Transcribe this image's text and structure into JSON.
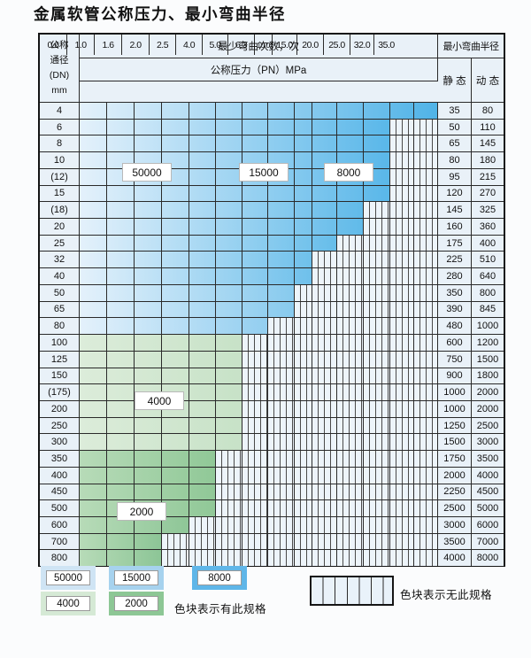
{
  "page": {
    "title": "金属软管公称压力、最小弯曲半径"
  },
  "table": {
    "header": {
      "dn_lines": [
        "公称",
        "通径",
        "(DN)",
        "mm"
      ],
      "cycles_label": "最少弯曲次数，次",
      "radius_label": "最小弯曲半径",
      "pressure_label": "公称压力（PN）MPa",
      "pressure_cols": [
        "0.6",
        "1.0",
        "1.6",
        "2.0",
        "2.5",
        "4.0",
        "5.0",
        "6.3",
        "10.0",
        "15.0",
        "20.0",
        "25.0",
        "32.0",
        "35.0"
      ],
      "static_label": "静 态",
      "dynamic_label": "动 态"
    },
    "rows": [
      {
        "dn": "4",
        "max_pn": "35.0",
        "palette": "b",
        "static": "35",
        "dynamic": "80"
      },
      {
        "dn": "6",
        "max_pn": "25.0",
        "palette": "b",
        "static": "50",
        "dynamic": "110"
      },
      {
        "dn": "8",
        "max_pn": "25.0",
        "palette": "b",
        "static": "65",
        "dynamic": "145"
      },
      {
        "dn": "10",
        "max_pn": "25.0",
        "palette": "b",
        "static": "80",
        "dynamic": "180"
      },
      {
        "dn": "(12)",
        "max_pn": "25.0",
        "palette": "b",
        "static": "95",
        "dynamic": "215"
      },
      {
        "dn": "15",
        "max_pn": "25.0",
        "palette": "b",
        "static": "120",
        "dynamic": "270"
      },
      {
        "dn": "(18)",
        "max_pn": "20.0",
        "palette": "b",
        "static": "145",
        "dynamic": "325"
      },
      {
        "dn": "20",
        "max_pn": "20.0",
        "palette": "b",
        "static": "160",
        "dynamic": "360"
      },
      {
        "dn": "25",
        "max_pn": "15.0",
        "palette": "b",
        "static": "175",
        "dynamic": "400"
      },
      {
        "dn": "32",
        "max_pn": "10.0",
        "palette": "b",
        "static": "225",
        "dynamic": "510"
      },
      {
        "dn": "40",
        "max_pn": "10.0",
        "palette": "b",
        "static": "280",
        "dynamic": "640"
      },
      {
        "dn": "50",
        "max_pn": "6.3",
        "palette": "b",
        "static": "350",
        "dynamic": "800"
      },
      {
        "dn": "65",
        "max_pn": "6.3",
        "palette": "b",
        "static": "390",
        "dynamic": "845"
      },
      {
        "dn": "80",
        "max_pn": "5.0",
        "palette": "b",
        "static": "480",
        "dynamic": "1000"
      },
      {
        "dn": "100",
        "max_pn": "4.0",
        "palette": "gl",
        "static": "600",
        "dynamic": "1200"
      },
      {
        "dn": "125",
        "max_pn": "4.0",
        "palette": "gl",
        "static": "750",
        "dynamic": "1500"
      },
      {
        "dn": "150",
        "max_pn": "4.0",
        "palette": "gl",
        "static": "900",
        "dynamic": "1800"
      },
      {
        "dn": "(175)",
        "max_pn": "4.0",
        "palette": "gl",
        "static": "1000",
        "dynamic": "2000"
      },
      {
        "dn": "200",
        "max_pn": "4.0",
        "palette": "gl",
        "static": "1000",
        "dynamic": "2000"
      },
      {
        "dn": "250",
        "max_pn": "4.0",
        "palette": "gl",
        "static": "1250",
        "dynamic": "2500"
      },
      {
        "dn": "300",
        "max_pn": "4.0",
        "palette": "gl",
        "static": "1500",
        "dynamic": "3000"
      },
      {
        "dn": "350",
        "max_pn": "2.5",
        "palette": "gd",
        "static": "1750",
        "dynamic": "3500"
      },
      {
        "dn": "400",
        "max_pn": "2.5",
        "palette": "gd",
        "static": "2000",
        "dynamic": "4000"
      },
      {
        "dn": "450",
        "max_pn": "2.5",
        "palette": "gd",
        "static": "2250",
        "dynamic": "4500"
      },
      {
        "dn": "500",
        "max_pn": "2.5",
        "palette": "gd",
        "static": "2500",
        "dynamic": "5000"
      },
      {
        "dn": "600",
        "max_pn": "2.0",
        "palette": "gd",
        "static": "3000",
        "dynamic": "6000"
      },
      {
        "dn": "700",
        "max_pn": "1.6",
        "palette": "gd",
        "static": "3500",
        "dynamic": "7000"
      },
      {
        "dn": "800",
        "max_pn": "1.6",
        "palette": "gd",
        "static": "4000",
        "dynamic": "8000"
      }
    ],
    "zone_labels": [
      "50000",
      "15000",
      "8000",
      "4000",
      "2000"
    ]
  },
  "legend": {
    "swatches_row1": [
      {
        "label": "50000",
        "color": "#cfe4f4"
      },
      {
        "label": "15000",
        "color": "#a6d2ee"
      },
      {
        "label": "8000",
        "color": "#5fb6e8"
      }
    ],
    "swatches_row2": [
      {
        "label": "4000",
        "color": "#d5e9d5"
      },
      {
        "label": "2000",
        "color": "#8dc795"
      }
    ],
    "has_spec_text": "色块表示有此规格",
    "no_spec_text": "色块表示无此规格"
  },
  "colors": {
    "blue_light": "#e4f1fb",
    "blue_ends": {
      "35.0": "#50b3e7",
      "25.0": "#59b7e9",
      "20.0": "#60bae9",
      "15.0": "#66bdea",
      "10.0": "#6ec0eb",
      "6.3": "#87caee",
      "5.0": "#92cef0"
    },
    "green_light_start": "#dcecda",
    "green_light_end": "#c7e2c7",
    "green_dark_start": "#b7dbb8",
    "green_dark_ends": {
      "2.5": "#90c897",
      "2.0": "#8ec697",
      "1.6": "#8cc596"
    },
    "stripe_bg": "#edf4fa",
    "stripe_line": "#4a4a4a"
  }
}
